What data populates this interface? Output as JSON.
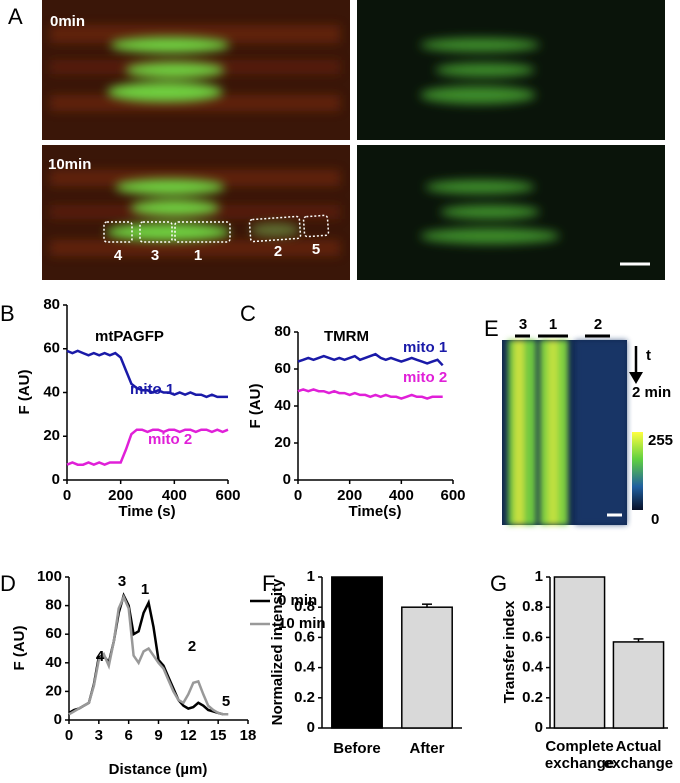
{
  "images": [
    {
      "label": "A",
      "texts": [
        "0min",
        "10min"
      ],
      "regions": [
        "4",
        "3",
        "1",
        "2",
        "5"
      ]
    },
    {
      "label": "E",
      "regions": [
        "3",
        "1",
        "2"
      ],
      "texts": [
        "t",
        "2 min"
      ],
      "colorbar": [
        "255",
        "0"
      ]
    }
  ],
  "chart_data": [
    {
      "type": "line",
      "label": "B",
      "title": "mtPAGFP",
      "x_label": "Time (s)",
      "y_label": "F (AU)",
      "x": [
        0,
        20,
        40,
        60,
        80,
        100,
        120,
        140,
        160,
        180,
        200,
        220,
        240,
        260,
        280,
        300,
        320,
        340,
        360,
        380,
        400,
        420,
        440,
        460,
        480,
        500,
        520,
        540,
        560,
        580,
        600
      ],
      "series": [
        {
          "name": "mito 1",
          "color": "#1a1aa8",
          "values": [
            59,
            58,
            59,
            58,
            57,
            58,
            57,
            58,
            57,
            58,
            56,
            50,
            44,
            42,
            41,
            41,
            40,
            41,
            40,
            40,
            39,
            40,
            39,
            40,
            39,
            39,
            38,
            39,
            38,
            38,
            38
          ]
        },
        {
          "name": "mito 2",
          "color": "#e020d8",
          "values": [
            7,
            8,
            7,
            7,
            8,
            7,
            8,
            7,
            8,
            8,
            8,
            14,
            21,
            23,
            23,
            22,
            23,
            23,
            22,
            23,
            23,
            22,
            23,
            23,
            22,
            23,
            23,
            22,
            23,
            22,
            23
          ]
        }
      ],
      "xlim": [
        0,
        600
      ],
      "ylim": [
        0,
        80
      ],
      "xticks": [
        0,
        200,
        400,
        600
      ],
      "yticks": [
        0,
        20,
        40,
        60,
        80
      ]
    },
    {
      "type": "line",
      "label": "C",
      "title": "TMRM",
      "x_label": "Time(s)",
      "y_label": "F (AU)",
      "x": [
        0,
        20,
        40,
        60,
        80,
        100,
        120,
        140,
        160,
        180,
        200,
        220,
        240,
        260,
        280,
        300,
        320,
        340,
        360,
        380,
        400,
        420,
        440,
        460,
        480,
        500,
        520,
        540,
        560
      ],
      "series": [
        {
          "name": "mito 1",
          "color": "#1a1aa8",
          "values": [
            64,
            65,
            66,
            65,
            66,
            67,
            66,
            65,
            66,
            65,
            66,
            67,
            65,
            66,
            67,
            68,
            66,
            65,
            66,
            65,
            64,
            65,
            66,
            65,
            64,
            63,
            64,
            65,
            62
          ]
        },
        {
          "name": "mito 2",
          "color": "#e020d8",
          "values": [
            48,
            49,
            48,
            49,
            48,
            48,
            47,
            48,
            47,
            47,
            46,
            47,
            46,
            46,
            45,
            46,
            45,
            46,
            45,
            45,
            44,
            45,
            46,
            45,
            45,
            44,
            45,
            45,
            45
          ]
        }
      ],
      "xlim": [
        0,
        600
      ],
      "ylim": [
        0,
        80
      ],
      "xticks": [
        0,
        200,
        400,
        600
      ],
      "yticks": [
        0,
        20,
        40,
        60,
        80
      ]
    },
    {
      "type": "line",
      "label": "D",
      "x_label": "Distance (µm)",
      "y_label": "F (AU)",
      "x": [
        0,
        0.5,
        1,
        1.5,
        2,
        2.5,
        3,
        3.5,
        4,
        4.5,
        5,
        5.5,
        6,
        6.5,
        7,
        7.5,
        8,
        8.5,
        9,
        9.5,
        10,
        10.5,
        11,
        11.5,
        12,
        12.5,
        13,
        13.5,
        14,
        14.5,
        15,
        15.5,
        16
      ],
      "series": [
        {
          "name": "0 min",
          "color": "#000000",
          "values": [
            5,
            7,
            8,
            10,
            12,
            25,
            44,
            45,
            40,
            55,
            75,
            87,
            80,
            60,
            62,
            75,
            82,
            65,
            42,
            38,
            30,
            22,
            14,
            10,
            8,
            9,
            12,
            10,
            7,
            6,
            5,
            4,
            4
          ]
        },
        {
          "name": "10 min",
          "color": "#999999",
          "values": [
            4,
            6,
            8,
            10,
            12,
            24,
            42,
            46,
            38,
            55,
            78,
            86,
            78,
            45,
            40,
            48,
            50,
            45,
            40,
            36,
            28,
            20,
            14,
            12,
            18,
            26,
            27,
            18,
            10,
            7,
            5,
            4,
            4
          ]
        }
      ],
      "annotations": [
        "4",
        "3",
        "1",
        "2",
        "5"
      ],
      "xlim": [
        0,
        18
      ],
      "ylim": [
        0,
        100
      ],
      "xticks": [
        0,
        3,
        6,
        9,
        12,
        15,
        18
      ],
      "yticks": [
        0,
        20,
        40,
        60,
        80,
        100
      ]
    },
    {
      "type": "bar",
      "label": "F",
      "y_label": "Normalized intensity",
      "categories": [
        "Before",
        "After"
      ],
      "values": [
        1,
        0.8
      ],
      "errors": [
        0,
        0.02
      ],
      "colors": [
        "#000000",
        "#d9d9d9"
      ],
      "ylim": [
        0,
        1
      ],
      "yticks": [
        0,
        0.2,
        0.4,
        0.6,
        0.8,
        1
      ]
    },
    {
      "type": "bar",
      "label": "G",
      "y_label": "Transfer index",
      "categories": [
        "Complete exchange",
        "Actual exchange"
      ],
      "values": [
        1,
        0.57
      ],
      "errors": [
        0,
        0.02
      ],
      "colors": [
        "#d9d9d9",
        "#d9d9d9"
      ],
      "ylim": [
        0,
        1
      ],
      "yticks": [
        0,
        0.2,
        0.4,
        0.6,
        0.8,
        1
      ]
    }
  ]
}
